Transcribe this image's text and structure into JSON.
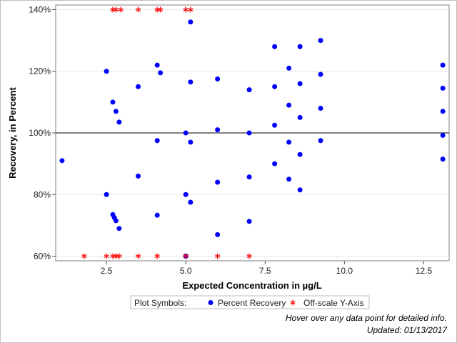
{
  "chart_data": {
    "type": "scatter",
    "xlabel": "Expected Concentration in µg/L",
    "ylabel": "Recovery, in Percent",
    "xlim": [
      0.9,
      13.3
    ],
    "ylim": [
      58.5,
      141.5
    ],
    "x_ticks": [
      2.5,
      5.0,
      7.5,
      10.0,
      12.5
    ],
    "x_tick_labels": [
      "2.5",
      "5.0",
      "7.5",
      "10.0",
      "12.5"
    ],
    "y_ticks": [
      60,
      80,
      100,
      120,
      140
    ],
    "y_tick_labels": [
      "60%",
      "80%",
      "100%",
      "120%",
      "140%"
    ],
    "reference_line_y": 100,
    "grid": "horizontal",
    "legend_placement": "bottom-center",
    "legend": {
      "title": "Plot Symbols:",
      "entries": [
        "Percent Recovery",
        "Off-scale Y-Axis"
      ]
    },
    "colors": {
      "percent_recovery": "#0000ff",
      "offscale": "#ff0000"
    },
    "series": [
      {
        "name": "Percent Recovery",
        "marker": "circle",
        "points": [
          [
            1.1,
            91
          ],
          [
            2.5,
            120
          ],
          [
            2.5,
            80
          ],
          [
            2.7,
            110
          ],
          [
            2.7,
            73.5
          ],
          [
            2.75,
            72.5
          ],
          [
            2.8,
            107
          ],
          [
            2.8,
            71.5
          ],
          [
            2.9,
            103.5
          ],
          [
            2.9,
            69
          ],
          [
            3.5,
            115
          ],
          [
            3.5,
            86
          ],
          [
            4.1,
            122
          ],
          [
            4.1,
            97.5
          ],
          [
            4.1,
            73.3
          ],
          [
            4.2,
            119.5
          ],
          [
            5.0,
            100
          ],
          [
            5.0,
            80
          ],
          [
            5.0,
            60
          ],
          [
            5.15,
            136
          ],
          [
            5.15,
            116.5
          ],
          [
            5.15,
            97
          ],
          [
            5.15,
            77.5
          ],
          [
            6.0,
            117.5
          ],
          [
            6.0,
            101
          ],
          [
            6.0,
            84
          ],
          [
            6.0,
            67
          ],
          [
            7.0,
            114
          ],
          [
            7.0,
            100
          ],
          [
            7.0,
            85.7
          ],
          [
            7.0,
            71.3
          ],
          [
            7.8,
            128
          ],
          [
            7.8,
            115
          ],
          [
            7.8,
            102.5
          ],
          [
            7.8,
            90
          ],
          [
            8.25,
            121
          ],
          [
            8.25,
            109
          ],
          [
            8.25,
            97
          ],
          [
            8.25,
            85
          ],
          [
            8.6,
            128
          ],
          [
            8.6,
            116
          ],
          [
            8.6,
            105
          ],
          [
            8.6,
            93
          ],
          [
            8.6,
            81.5
          ],
          [
            9.25,
            130
          ],
          [
            9.25,
            119
          ],
          [
            9.25,
            108
          ],
          [
            9.25,
            97.5
          ],
          [
            13.1,
            122
          ],
          [
            13.1,
            114.5
          ],
          [
            13.1,
            107
          ],
          [
            13.1,
            99.2
          ],
          [
            13.1,
            91.5
          ]
        ]
      },
      {
        "name": "Off-scale Y-Axis",
        "marker": "asterisk",
        "points": [
          [
            2.7,
            140
          ],
          [
            2.8,
            140
          ],
          [
            2.95,
            140
          ],
          [
            3.5,
            140
          ],
          [
            4.1,
            140
          ],
          [
            4.2,
            140
          ],
          [
            5.0,
            140
          ],
          [
            5.15,
            140
          ],
          [
            1.8,
            60
          ],
          [
            2.5,
            60
          ],
          [
            2.7,
            60
          ],
          [
            2.8,
            60
          ],
          [
            2.9,
            60
          ],
          [
            3.5,
            60
          ],
          [
            4.1,
            60
          ],
          [
            5.0,
            60
          ],
          [
            6.0,
            60
          ],
          [
            7.0,
            60
          ]
        ]
      }
    ]
  },
  "footer": {
    "hover_note": "Hover over any data point for detailed info.",
    "updated": "Updated: 01/13/2017"
  }
}
